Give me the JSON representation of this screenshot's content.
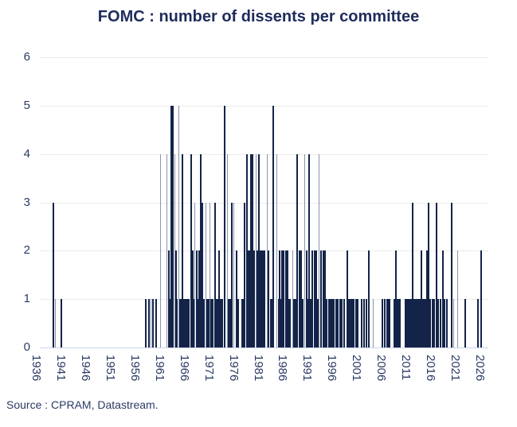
{
  "header": {
    "title": "FOMC : number of dissents per committee"
  },
  "footer": {
    "source": "Source : CPRAM, Datastream."
  },
  "colors": {
    "title_text": "#1e2c5c",
    "axis_text": "#2b3a64",
    "bar_dark": "#142449",
    "bar_light": "#8a94ab",
    "gridline": "#ebebeb",
    "baseline": "#c8d2ea",
    "background": "#ffffff"
  },
  "chart_data": {
    "type": "bar",
    "title": "FOMC : number of dissents per committee",
    "xlabel": "",
    "ylabel": "",
    "x_range": [
      1936,
      2026.6
    ],
    "ylim": [
      0,
      6
    ],
    "yticks": [
      0,
      1,
      2,
      3,
      4,
      5,
      6
    ],
    "xticks": [
      1936,
      1941,
      1946,
      1951,
      1956,
      1961,
      1966,
      1971,
      1976,
      1981,
      1986,
      1991,
      1996,
      2001,
      2006,
      2011,
      2016,
      2021,
      2026
    ],
    "grid": "horizontal-light",
    "legend": "none",
    "bar_meaning": "number of dissents at each FOMC committee meeting",
    "bars": [
      [
        1939.6,
        3
      ],
      [
        1940.0,
        1,
        1
      ],
      [
        1941.2,
        1
      ],
      [
        1958.3,
        1
      ],
      [
        1959.0,
        1
      ],
      [
        1959.4,
        1,
        1
      ],
      [
        1959.8,
        1
      ],
      [
        1960.4,
        1
      ],
      [
        1961.3,
        4,
        1
      ],
      [
        1962.5,
        4,
        1
      ],
      [
        1963.0,
        2
      ],
      [
        1963.2,
        1
      ],
      [
        1963.4,
        5
      ],
      [
        1963.8,
        5
      ],
      [
        1964.2,
        4,
        1
      ],
      [
        1964.4,
        2
      ],
      [
        1964.6,
        1
      ],
      [
        1965.0,
        5,
        1
      ],
      [
        1965.3,
        1
      ],
      [
        1965.6,
        1
      ],
      [
        1965.8,
        4
      ],
      [
        1966.1,
        1
      ],
      [
        1966.4,
        1
      ],
      [
        1966.7,
        1
      ],
      [
        1967.0,
        1
      ],
      [
        1967.5,
        4
      ],
      [
        1967.8,
        2
      ],
      [
        1968.0,
        1
      ],
      [
        1968.3,
        3,
        1
      ],
      [
        1968.6,
        2
      ],
      [
        1968.9,
        1
      ],
      [
        1969.1,
        2
      ],
      [
        1969.4,
        4
      ],
      [
        1969.8,
        3
      ],
      [
        1970.1,
        1
      ],
      [
        1970.5,
        3,
        1
      ],
      [
        1970.8,
        1
      ],
      [
        1971.0,
        1
      ],
      [
        1971.3,
        3,
        1
      ],
      [
        1971.6,
        1
      ],
      [
        1971.9,
        1
      ],
      [
        1972.3,
        3
      ],
      [
        1972.6,
        1
      ],
      [
        1972.9,
        1
      ],
      [
        1973.2,
        2
      ],
      [
        1973.5,
        1
      ],
      [
        1973.8,
        1
      ],
      [
        1974.3,
        5
      ],
      [
        1974.8,
        4,
        1
      ],
      [
        1975.1,
        1
      ],
      [
        1975.4,
        1
      ],
      [
        1975.7,
        3
      ],
      [
        1976.2,
        3,
        1
      ],
      [
        1976.7,
        2
      ],
      [
        1977.0,
        1
      ],
      [
        1977.8,
        1
      ],
      [
        1978.1,
        1
      ],
      [
        1978.3,
        3
      ],
      [
        1978.8,
        4
      ],
      [
        1979.1,
        2
      ],
      [
        1979.4,
        2
      ],
      [
        1979.6,
        4
      ],
      [
        1979.9,
        2
      ],
      [
        1980.0,
        4
      ],
      [
        1980.3,
        2
      ],
      [
        1980.6,
        4,
        1
      ],
      [
        1980.9,
        2
      ],
      [
        1981.2,
        4
      ],
      [
        1981.5,
        2
      ],
      [
        1981.8,
        2
      ],
      [
        1982.1,
        2
      ],
      [
        1982.4,
        2
      ],
      [
        1982.9,
        4,
        1
      ],
      [
        1983.2,
        2
      ],
      [
        1983.6,
        1
      ],
      [
        1983.9,
        1
      ],
      [
        1984.2,
        5
      ],
      [
        1984.9,
        4,
        1
      ],
      [
        1985.2,
        1
      ],
      [
        1985.4,
        2
      ],
      [
        1985.7,
        1
      ],
      [
        1986.0,
        2
      ],
      [
        1986.3,
        2
      ],
      [
        1986.7,
        2
      ],
      [
        1987.0,
        2
      ],
      [
        1987.3,
        1
      ],
      [
        1987.6,
        1
      ],
      [
        1988.1,
        2,
        1
      ],
      [
        1988.4,
        1
      ],
      [
        1988.7,
        1
      ],
      [
        1989.0,
        4
      ],
      [
        1989.4,
        2
      ],
      [
        1989.8,
        2
      ],
      [
        1990.2,
        1
      ],
      [
        1990.5,
        4,
        1
      ],
      [
        1990.9,
        2
      ],
      [
        1991.2,
        1
      ],
      [
        1991.4,
        4
      ],
      [
        1991.8,
        1
      ],
      [
        1992.1,
        2
      ],
      [
        1992.5,
        2
      ],
      [
        1992.9,
        2
      ],
      [
        1993.2,
        1
      ],
      [
        1993.4,
        4,
        1
      ],
      [
        1993.9,
        2
      ],
      [
        1994.3,
        2
      ],
      [
        1994.7,
        2
      ],
      [
        1995.0,
        1
      ],
      [
        1995.4,
        1
      ],
      [
        1995.8,
        1
      ],
      [
        1996.1,
        1
      ],
      [
        1996.5,
        1
      ],
      [
        1996.9,
        1
      ],
      [
        1997.2,
        1
      ],
      [
        1997.7,
        1
      ],
      [
        1998.0,
        1
      ],
      [
        1998.5,
        1
      ],
      [
        1999.1,
        2
      ],
      [
        1999.4,
        1
      ],
      [
        1999.7,
        1
      ],
      [
        1999.9,
        1
      ],
      [
        2000.1,
        1
      ],
      [
        2000.5,
        1
      ],
      [
        2000.9,
        1
      ],
      [
        2001.2,
        1
      ],
      [
        2002.0,
        1
      ],
      [
        2002.6,
        1
      ],
      [
        2003.0,
        1
      ],
      [
        2003.6,
        2
      ],
      [
        2004.4,
        1,
        1
      ],
      [
        2006.3,
        1
      ],
      [
        2006.8,
        1
      ],
      [
        2007.3,
        1
      ],
      [
        2007.5,
        1
      ],
      [
        2007.7,
        1
      ],
      [
        2008.7,
        1
      ],
      [
        2009.0,
        2
      ],
      [
        2009.3,
        1
      ],
      [
        2009.6,
        1
      ],
      [
        2009.9,
        1
      ],
      [
        2010.9,
        1
      ],
      [
        2011.2,
        1
      ],
      [
        2011.5,
        1
      ],
      [
        2011.8,
        1
      ],
      [
        2012.1,
        1
      ],
      [
        2012.4,
        3
      ],
      [
        2012.7,
        1
      ],
      [
        2013.0,
        1
      ],
      [
        2013.3,
        1
      ],
      [
        2013.6,
        1
      ],
      [
        2013.9,
        1
      ],
      [
        2014.2,
        2
      ],
      [
        2014.5,
        1
      ],
      [
        2014.8,
        1
      ],
      [
        2015.1,
        1
      ],
      [
        2015.4,
        2
      ],
      [
        2015.7,
        3
      ],
      [
        2016.0,
        1
      ],
      [
        2016.4,
        1
      ],
      [
        2016.8,
        1
      ],
      [
        2017.2,
        3
      ],
      [
        2017.6,
        1
      ],
      [
        2018.0,
        1
      ],
      [
        2018.5,
        2
      ],
      [
        2018.9,
        1
      ],
      [
        2019.3,
        1
      ],
      [
        2020.3,
        3
      ],
      [
        2020.7,
        1,
        1
      ],
      [
        2021.5,
        2,
        1
      ],
      [
        2023.1,
        1
      ],
      [
        2025.6,
        1
      ],
      [
        2026.3,
        2
      ]
    ]
  }
}
